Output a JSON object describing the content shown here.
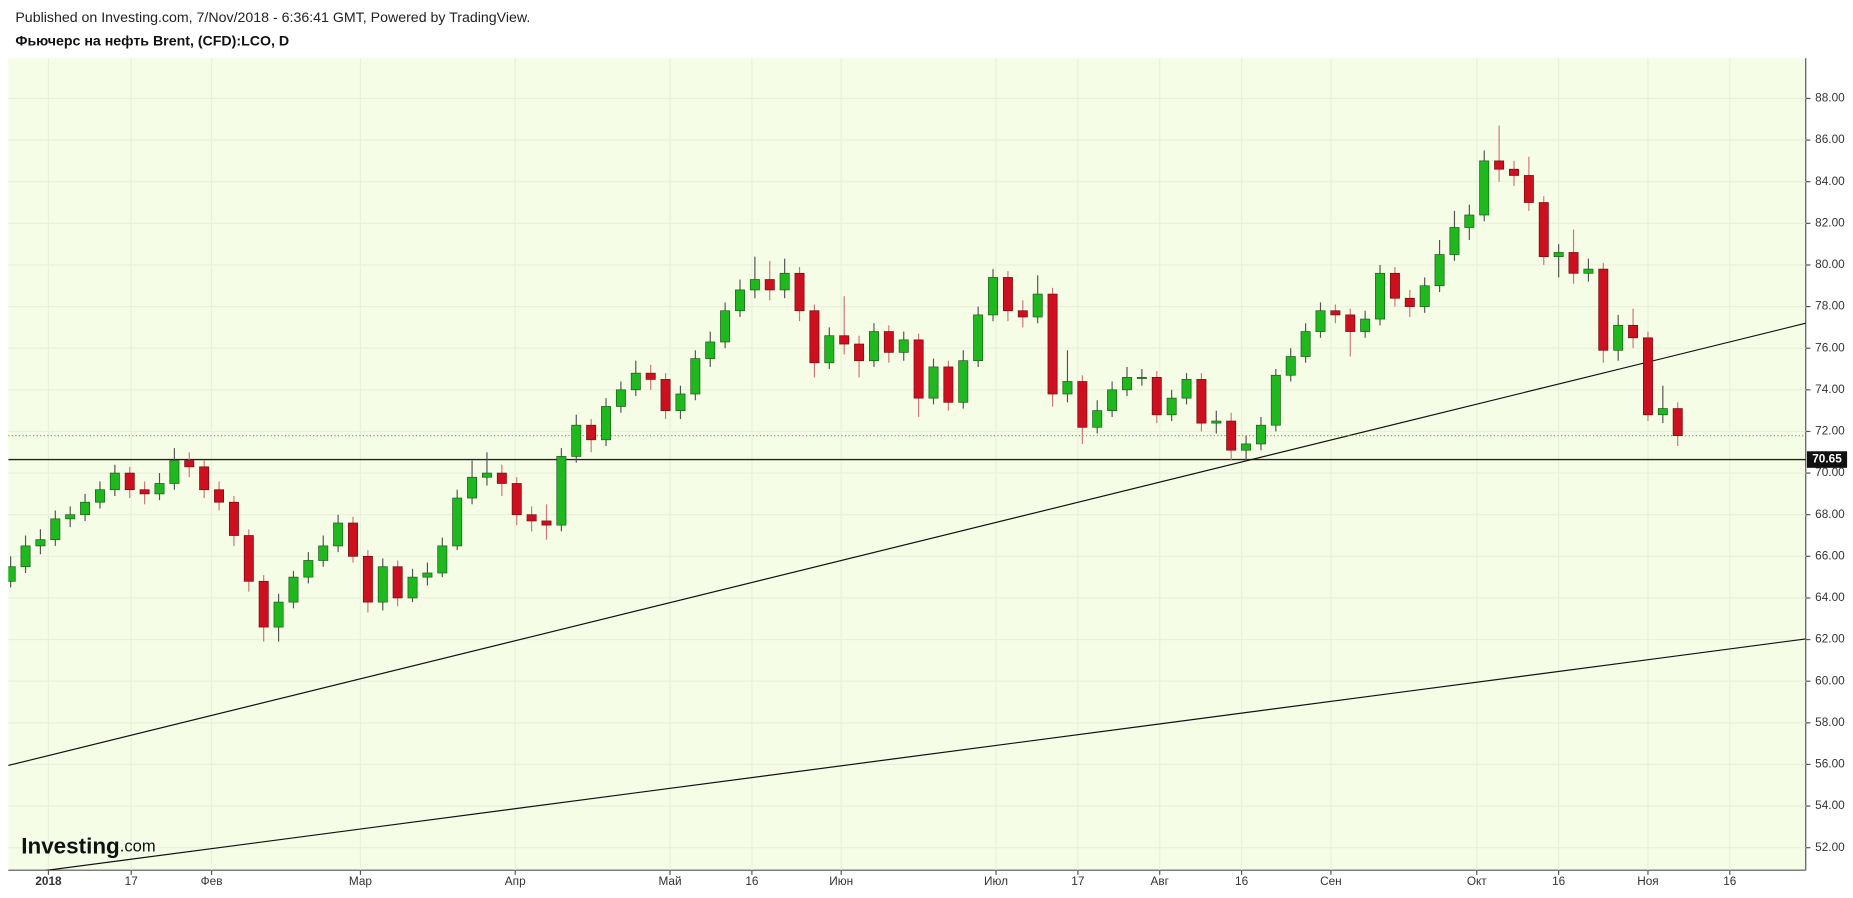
{
  "header": {
    "published": "Published on Investing.com, 7/Nov/2018 - 6:36:41 GMT, Powered by TradingView.",
    "logo_main": "Investing",
    "logo_suffix": ".com"
  },
  "chart_data": {
    "type": "candlestick",
    "title": "Фьючерс на нефть Brent, (CFD):LCO, D",
    "up_color": "#1fb81f",
    "down_color": "#cc1020",
    "grid": true,
    "open": [
      64.8,
      65.5,
      66.5,
      66.8,
      67.8,
      68.0,
      68.6,
      69.2,
      70.0,
      69.2,
      69.0,
      69.5,
      70.6,
      70.3,
      69.2,
      68.6,
      67.0,
      64.8,
      62.6,
      63.8,
      65.0,
      65.8,
      66.5,
      67.6,
      66.0,
      63.8,
      65.5,
      64.0,
      65.0,
      65.2,
      66.5,
      68.8,
      69.8,
      70.0,
      69.5,
      68.0,
      67.7,
      67.5,
      70.8,
      72.3,
      71.6,
      73.2,
      74.0,
      74.8,
      74.5,
      73.0,
      73.8,
      75.5,
      76.3,
      77.8,
      78.8,
      79.3,
      78.8,
      79.6,
      77.8,
      75.3,
      76.6,
      76.2,
      75.4,
      76.8,
      75.8,
      76.4,
      73.6,
      75.1,
      73.4,
      75.4,
      77.6,
      79.4,
      77.8,
      77.5,
      78.6,
      73.8,
      74.4,
      72.2,
      73.0,
      74.0,
      74.6,
      74.6,
      72.8,
      73.6,
      74.5,
      72.4,
      72.5,
      71.1,
      71.4,
      72.3,
      74.7,
      75.6,
      76.8,
      77.8,
      77.6,
      76.8,
      77.4,
      79.6,
      78.4,
      78.0,
      79.0,
      80.5,
      81.8,
      82.4,
      85.0,
      84.6,
      84.3,
      83.0,
      80.4,
      80.6,
      79.6,
      79.8,
      75.9,
      77.1,
      76.5,
      72.8,
      73.1
    ],
    "high": [
      66.0,
      67.0,
      67.3,
      68.2,
      68.4,
      69.0,
      69.6,
      70.4,
      70.3,
      69.6,
      70.0,
      71.2,
      71.0,
      70.6,
      69.6,
      68.9,
      67.3,
      65.1,
      64.2,
      65.3,
      66.2,
      67.0,
      68.0,
      67.9,
      66.3,
      65.9,
      65.8,
      65.4,
      65.7,
      66.9,
      69.2,
      70.6,
      71.0,
      70.4,
      69.8,
      68.4,
      68.5,
      71.2,
      72.8,
      72.6,
      73.6,
      74.4,
      75.4,
      75.2,
      74.8,
      74.2,
      75.9,
      76.8,
      78.2,
      79.3,
      80.4,
      80.2,
      80.3,
      79.9,
      78.1,
      77.0,
      78.5,
      76.6,
      77.2,
      77.1,
      76.8,
      76.7,
      75.5,
      75.4,
      75.9,
      78.0,
      79.8,
      79.7,
      78.3,
      79.5,
      78.9,
      75.9,
      74.7,
      73.5,
      74.4,
      75.1,
      75.0,
      74.9,
      74.0,
      74.8,
      74.8,
      73.0,
      72.9,
      71.8,
      72.7,
      75.0,
      76.0,
      77.2,
      78.2,
      78.1,
      77.9,
      77.8,
      80.0,
      79.9,
      78.8,
      79.4,
      81.2,
      82.6,
      82.9,
      85.5,
      86.7,
      85.0,
      85.2,
      83.3,
      81.0,
      81.7,
      80.3,
      80.1,
      77.6,
      77.9,
      76.8,
      74.2,
      73.4
    ],
    "low": [
      64.5,
      65.2,
      66.1,
      66.5,
      67.4,
      67.7,
      68.3,
      68.9,
      68.8,
      68.5,
      68.7,
      69.2,
      69.8,
      68.8,
      68.2,
      66.5,
      64.3,
      61.9,
      61.9,
      63.5,
      64.7,
      65.5,
      66.2,
      65.7,
      63.3,
      63.4,
      63.6,
      63.8,
      64.6,
      65.0,
      66.3,
      68.5,
      69.4,
      68.9,
      67.5,
      67.2,
      66.8,
      67.2,
      70.5,
      71.0,
      71.3,
      72.9,
      73.7,
      74.0,
      72.6,
      72.6,
      73.5,
      75.1,
      76.0,
      77.5,
      78.4,
      78.3,
      78.4,
      77.3,
      74.6,
      75.0,
      75.7,
      74.6,
      75.1,
      75.3,
      75.4,
      72.7,
      73.3,
      73.0,
      73.1,
      75.1,
      77.3,
      77.3,
      77.0,
      77.2,
      73.2,
      73.4,
      71.4,
      71.9,
      72.7,
      73.7,
      74.2,
      72.4,
      72.5,
      73.3,
      72.0,
      71.9,
      70.6,
      70.6,
      71.1,
      72.0,
      74.4,
      75.3,
      76.5,
      77.2,
      75.6,
      76.5,
      77.1,
      78.0,
      77.5,
      77.7,
      78.7,
      80.2,
      81.2,
      82.1,
      84.0,
      83.8,
      82.6,
      80.0,
      79.4,
      79.1,
      79.2,
      75.3,
      75.4,
      76.0,
      72.5,
      72.4,
      71.3
    ],
    "close": [
      65.5,
      66.5,
      66.8,
      67.8,
      68.0,
      68.6,
      69.2,
      70.0,
      69.2,
      69.0,
      69.5,
      70.6,
      70.3,
      69.2,
      68.6,
      67.0,
      64.8,
      62.6,
      63.8,
      65.0,
      65.8,
      66.5,
      67.6,
      66.0,
      63.8,
      65.5,
      64.0,
      65.0,
      65.2,
      66.5,
      68.8,
      69.8,
      70.0,
      69.5,
      68.0,
      67.7,
      67.5,
      70.8,
      72.3,
      71.6,
      73.2,
      74.0,
      74.8,
      74.5,
      73.0,
      73.8,
      75.5,
      76.3,
      77.8,
      78.8,
      79.3,
      78.8,
      79.6,
      77.8,
      75.3,
      76.6,
      76.2,
      75.4,
      76.8,
      75.8,
      76.4,
      73.6,
      75.1,
      73.4,
      75.4,
      77.6,
      79.4,
      77.8,
      77.5,
      78.6,
      73.8,
      74.4,
      72.2,
      73.0,
      74.0,
      74.6,
      74.6,
      72.8,
      73.6,
      74.5,
      72.4,
      72.5,
      71.1,
      71.4,
      72.3,
      74.7,
      75.6,
      76.8,
      77.8,
      77.6,
      76.8,
      77.4,
      79.6,
      78.4,
      78.0,
      79.0,
      80.5,
      81.8,
      82.4,
      85.0,
      84.6,
      84.3,
      83.0,
      80.4,
      80.6,
      79.6,
      79.8,
      75.9,
      77.1,
      76.5,
      72.8,
      73.1,
      71.8
    ],
    "xlim": [
      -0.16,
      120.6
    ],
    "xticks": [
      {
        "value": 2.54,
        "label": "2018"
      },
      {
        "value": 8.1,
        "label": "17"
      },
      {
        "value": 13.5,
        "label": "Фев"
      },
      {
        "value": 23.5,
        "label": "Мар"
      },
      {
        "value": 33.9,
        "label": "Апр"
      },
      {
        "value": 44.3,
        "label": "Май"
      },
      {
        "value": 49.8,
        "label": "16"
      },
      {
        "value": 55.8,
        "label": "Июн"
      },
      {
        "value": 66.2,
        "label": "Июл"
      },
      {
        "value": 71.7,
        "label": "17"
      },
      {
        "value": 77.2,
        "label": "Авг"
      },
      {
        "value": 82.7,
        "label": "16"
      },
      {
        "value": 88.7,
        "label": "Сен"
      },
      {
        "value": 98.5,
        "label": "Окт"
      },
      {
        "value": 104.0,
        "label": "16"
      },
      {
        "value": 110.0,
        "label": "Ноя"
      },
      {
        "value": 115.5,
        "label": "16"
      }
    ],
    "ylim": [
      50.92,
      89.93
    ],
    "yticks": [
      {
        "value": 52,
        "label": "52.00"
      },
      {
        "value": 54,
        "label": "54.00"
      },
      {
        "value": 56,
        "label": "56.00"
      },
      {
        "value": 58,
        "label": "58.00"
      },
      {
        "value": 60,
        "label": "60.00"
      },
      {
        "value": 62,
        "label": "62.00"
      },
      {
        "value": 64,
        "label": "64.00"
      },
      {
        "value": 66,
        "label": "66.00"
      },
      {
        "value": 68,
        "label": "68.00"
      },
      {
        "value": 70,
        "label": "70.00"
      },
      {
        "value": 72,
        "label": "72.00"
      },
      {
        "value": 74,
        "label": "74.00"
      },
      {
        "value": 76,
        "label": "76.00"
      },
      {
        "value": 78,
        "label": "78.00"
      },
      {
        "value": 80,
        "label": "80.00"
      },
      {
        "value": 82,
        "label": "82.00"
      },
      {
        "value": 84,
        "label": "84.00"
      },
      {
        "value": 86,
        "label": "86.00"
      },
      {
        "value": 88,
        "label": "88.00"
      }
    ],
    "hline": {
      "value": 70.65,
      "label": "70.65"
    },
    "trendlines": [
      {
        "x": [
          -0.16,
          120.6
        ],
        "y": [
          55.95,
          77.2
        ]
      },
      {
        "x": [
          -0.16,
          120.6
        ],
        "y": [
          50.67,
          62.03
        ]
      }
    ]
  }
}
